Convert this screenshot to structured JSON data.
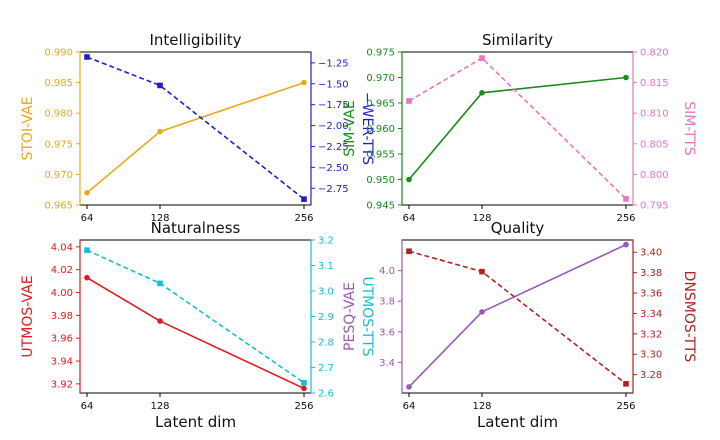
{
  "chart_data": [
    {
      "type": "line",
      "title": "Intelligibility",
      "xlabel": "",
      "x": [
        64,
        128,
        256
      ],
      "left": {
        "label": "STOI-VAE",
        "color": "#e8a91b",
        "values": [
          0.967,
          0.977,
          0.985
        ],
        "ylim": [
          0.965,
          0.99
        ],
        "ticks": [
          "0.965",
          "0.970",
          "0.975",
          "0.980",
          "0.985",
          "0.990"
        ],
        "marker": "circle",
        "dash": "solid"
      },
      "right": {
        "label": "−WER-TTS",
        "color": "#1f1fcc",
        "values": [
          -1.18,
          -1.52,
          -2.88
        ],
        "ylim": [
          -2.95,
          -1.12
        ],
        "ticks": [
          "−1.25",
          "−1.50",
          "−1.75",
          "−2.00",
          "−2.25",
          "−2.50",
          "−2.75"
        ],
        "tickvals": [
          -1.25,
          -1.5,
          -1.75,
          -2.0,
          -2.25,
          -2.5,
          -2.75
        ],
        "marker": "square",
        "dash": "dashed"
      }
    },
    {
      "type": "line",
      "title": "Similarity",
      "xlabel": "",
      "x": [
        64,
        128,
        256
      ],
      "left": {
        "label": "SIM-VAE",
        "color": "#1a8a1a",
        "values": [
          0.95,
          0.967,
          0.97
        ],
        "ylim": [
          0.945,
          0.975
        ],
        "ticks": [
          "0.945",
          "0.950",
          "0.955",
          "0.960",
          "0.965",
          "0.970",
          "0.975"
        ],
        "marker": "circle",
        "dash": "solid"
      },
      "right": {
        "label": "SIM-TTS",
        "color": "#e377c2",
        "values": [
          0.812,
          0.819,
          0.796
        ],
        "ylim": [
          0.795,
          0.82
        ],
        "ticks": [
          "0.795",
          "0.800",
          "0.805",
          "0.810",
          "0.815",
          "0.820"
        ],
        "tickvals": [
          0.795,
          0.8,
          0.805,
          0.81,
          0.815,
          0.82
        ],
        "marker": "square",
        "dash": "dashed"
      }
    },
    {
      "type": "line",
      "title": "Naturalness",
      "xlabel": "Latent dim",
      "x": [
        64,
        128,
        256
      ],
      "left": {
        "label": "UTMOS-VAE",
        "color": "#e31a1c",
        "values": [
          4.013,
          3.975,
          3.916
        ],
        "ylim": [
          3.912,
          4.046
        ],
        "ticks": [
          "3.92",
          "3.94",
          "3.96",
          "3.98",
          "4.00",
          "4.02",
          "4.04"
        ],
        "tickvals": [
          3.92,
          3.94,
          3.96,
          3.98,
          4.0,
          4.02,
          4.04
        ],
        "marker": "circle",
        "dash": "solid"
      },
      "right": {
        "label": "UTMOS-TTS",
        "color": "#17becf",
        "values": [
          3.16,
          3.03,
          2.64
        ],
        "ylim": [
          2.6,
          3.2
        ],
        "ticks": [
          "2.6",
          "2.7",
          "2.8",
          "2.9",
          "3.0",
          "3.1",
          "3.2"
        ],
        "tickvals": [
          2.6,
          2.7,
          2.8,
          2.9,
          3.0,
          3.1,
          3.2
        ],
        "marker": "square",
        "dash": "dashed"
      }
    },
    {
      "type": "line",
      "title": "Quality",
      "xlabel": "Latent dim",
      "x": [
        64,
        128,
        256
      ],
      "left": {
        "label": "PESQ-VAE",
        "color": "#9b59b6",
        "values": [
          3.24,
          3.73,
          4.17
        ],
        "ylim": [
          3.2,
          4.2
        ],
        "ticks": [
          "3.4",
          "3.6",
          "3.8",
          "4.0"
        ],
        "tickvals": [
          3.4,
          3.6,
          3.8,
          4.0
        ],
        "marker": "circle",
        "dash": "solid"
      },
      "right": {
        "label": "DNSMOS-TTS",
        "color": "#b22222",
        "values": [
          3.401,
          3.381,
          3.271
        ],
        "ylim": [
          3.262,
          3.412
        ],
        "ticks": [
          "3.28",
          "3.30",
          "3.32",
          "3.34",
          "3.36",
          "3.38",
          "3.40"
        ],
        "tickvals": [
          3.28,
          3.3,
          3.32,
          3.34,
          3.36,
          3.38,
          3.4
        ],
        "marker": "square",
        "dash": "dashed"
      }
    }
  ]
}
